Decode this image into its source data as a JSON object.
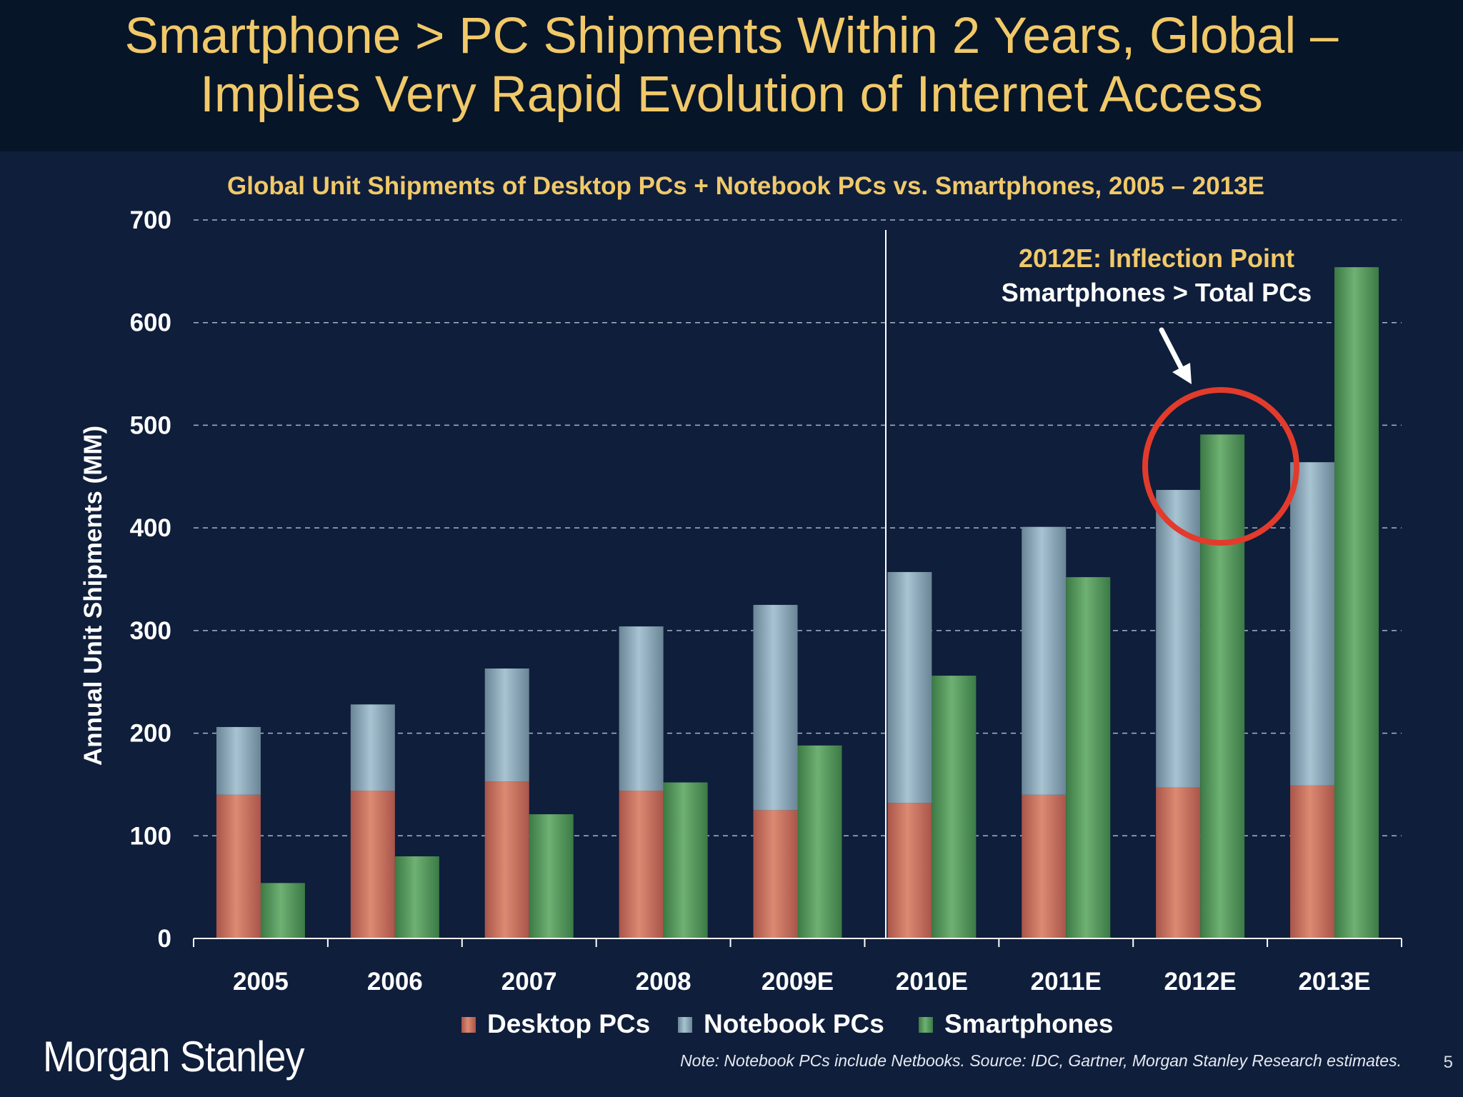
{
  "slide": {
    "title_line1": "Smartphone > PC Shipments Within 2 Years, Global –",
    "title_line2": "Implies Very Rapid Evolution of Internet Access",
    "logo": "Morgan Stanley",
    "note": "Note: Notebook PCs include Netbooks. Source: IDC, Gartner, Morgan Stanley Research estimates.",
    "page_number": "5"
  },
  "chart_data": {
    "type": "bar",
    "title": "Global Unit Shipments of Desktop PCs + Notebook PCs vs. Smartphones, 2005 – 2013E",
    "xlabel": "",
    "ylabel": "Annual Unit Shipments (MM)",
    "ylim": [
      0,
      700
    ],
    "yticks": [
      0,
      100,
      200,
      300,
      400,
      500,
      600,
      700
    ],
    "grid": true,
    "categories": [
      "2005",
      "2006",
      "2007",
      "2008",
      "2009E",
      "2010E",
      "2011E",
      "2012E",
      "2013E"
    ],
    "series": [
      {
        "name": "Desktop PCs",
        "stack": "pc",
        "color": "#d37a64",
        "values": [
          140,
          144,
          153,
          144,
          125,
          132,
          140,
          147,
          149
        ]
      },
      {
        "name": "Notebook PCs",
        "stack": "pc",
        "color": "#93b1c3",
        "values": [
          66,
          84,
          110,
          160,
          200,
          225,
          261,
          290,
          315
        ]
      },
      {
        "name": "Smartphones",
        "stack": "phone",
        "color": "#5f9f63",
        "values": [
          54,
          80,
          121,
          152,
          188,
          256,
          352,
          491,
          654
        ]
      }
    ],
    "legend_position": "bottom",
    "annotation": {
      "line1": "2012E: Inflection Point",
      "line2": "Smartphones > Total PCs",
      "target_category": "2012E"
    },
    "divider_after_category": "2009E"
  },
  "colors": {
    "background": "#0f1e3b",
    "header": "#071528",
    "title": "#f1c969",
    "annotation_gold": "#f1c969",
    "highlight_circle": "#e23b2c"
  }
}
